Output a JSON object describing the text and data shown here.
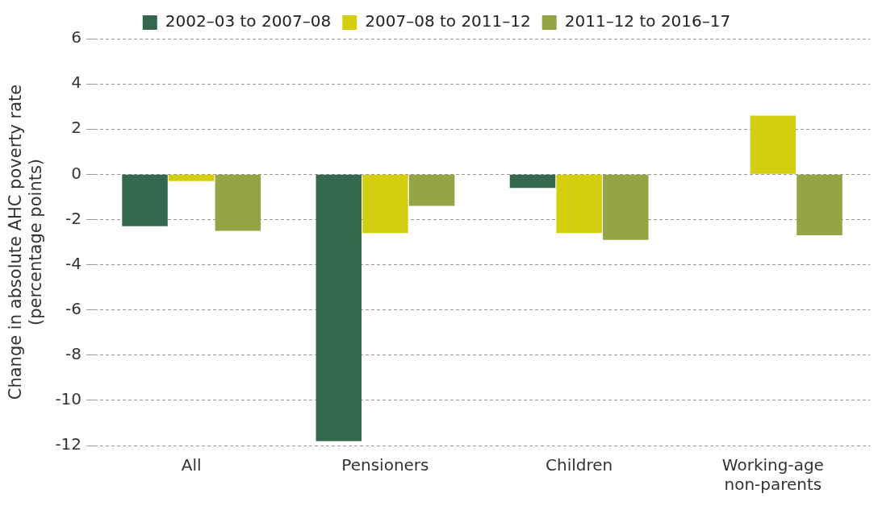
{
  "chart_data": {
    "type": "bar",
    "ylabel": "Change in absolute AHC poverty rate (percentage points)",
    "categories": [
      "All",
      "Pensioners",
      "Children",
      "Working-age non-parents"
    ],
    "series": [
      {
        "name": "2002–03 to 2007–08",
        "color": "#33684f",
        "values": [
          -2.3,
          -11.8,
          -0.6,
          0
        ]
      },
      {
        "name": "2007–08 to 2011–12",
        "color": "#d4cf0e",
        "values": [
          -0.3,
          -2.6,
          -2.6,
          2.6
        ]
      },
      {
        "name": "2011–12 to 2016–17",
        "color": "#93a545",
        "values": [
          -2.5,
          -1.4,
          -2.9,
          -2.7
        ]
      }
    ],
    "ylim": [
      -12,
      6
    ],
    "yticks": [
      -12,
      -10,
      -8,
      -6,
      -4,
      -2,
      0,
      2,
      4,
      6
    ],
    "grid": "y",
    "legend": "top"
  }
}
